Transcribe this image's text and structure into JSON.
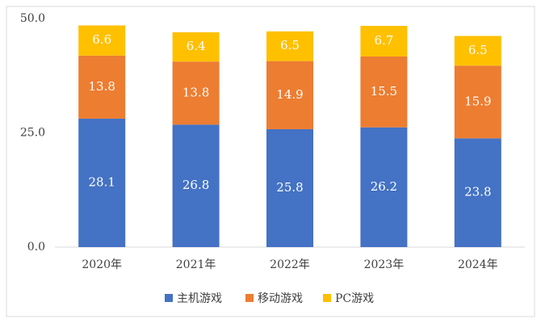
{
  "chart_data": {
    "type": "stacked_bar",
    "categories": [
      "2020年",
      "2021年",
      "2022年",
      "2023年",
      "2024年"
    ],
    "series": [
      {
        "name": "主机游戏",
        "color": "#4472c4",
        "values": [
          28.1,
          26.8,
          25.8,
          26.2,
          23.8
        ]
      },
      {
        "name": "移动游戏",
        "color": "#ed7d31",
        "values": [
          13.8,
          13.8,
          14.9,
          15.5,
          15.9
        ]
      },
      {
        "name": "PC游戏",
        "color": "#ffc000",
        "values": [
          6.6,
          6.4,
          6.5,
          6.7,
          6.5
        ]
      }
    ],
    "ylim": [
      0,
      50
    ],
    "yticks": [
      {
        "value": 0,
        "label": "0.0"
      },
      {
        "value": 25,
        "label": "25.0"
      },
      {
        "value": 50,
        "label": "50.0"
      }
    ],
    "grid": false,
    "legend": "bottom"
  }
}
